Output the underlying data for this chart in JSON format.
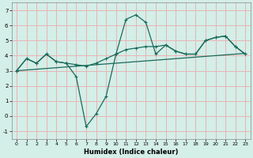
{
  "xlabel": "Humidex (Indice chaleur)",
  "xlim": [
    -0.5,
    23.5
  ],
  "ylim": [
    -1.5,
    7.5
  ],
  "xticks": [
    0,
    1,
    2,
    3,
    4,
    5,
    6,
    7,
    8,
    9,
    10,
    11,
    12,
    13,
    14,
    15,
    16,
    17,
    18,
    19,
    20,
    21,
    22,
    23
  ],
  "yticks": [
    -1,
    0,
    1,
    2,
    3,
    4,
    5,
    6,
    7
  ],
  "bg_color": "#d4eee8",
  "grid_color": "#e8b4b4",
  "line_color": "#1a6b5a",
  "jagged_x": [
    0,
    1,
    2,
    3,
    4,
    5,
    6,
    7,
    8,
    9,
    10,
    11,
    12,
    13,
    14,
    15,
    16,
    17,
    18,
    19,
    20,
    21,
    22,
    23
  ],
  "jagged_y": [
    3.0,
    3.8,
    3.5,
    4.1,
    3.6,
    3.5,
    2.6,
    -0.7,
    0.15,
    1.3,
    4.1,
    6.4,
    6.7,
    6.2,
    4.1,
    4.7,
    4.3,
    4.1,
    4.1,
    5.0,
    5.2,
    5.3,
    4.6,
    4.1
  ],
  "smooth_x": [
    0,
    1,
    2,
    3,
    4,
    5,
    6,
    7,
    8,
    9,
    10,
    11,
    12,
    13,
    14,
    15,
    16,
    17,
    18,
    19,
    20,
    21,
    22,
    23
  ],
  "smooth_y": [
    3.0,
    3.8,
    3.5,
    4.1,
    3.6,
    3.5,
    3.4,
    3.3,
    3.5,
    3.8,
    4.1,
    4.4,
    4.5,
    4.6,
    4.6,
    4.7,
    4.3,
    4.1,
    4.1,
    5.0,
    5.2,
    5.3,
    4.6,
    4.1
  ],
  "trend_x": [
    0,
    23
  ],
  "trend_y": [
    3.0,
    4.15
  ]
}
